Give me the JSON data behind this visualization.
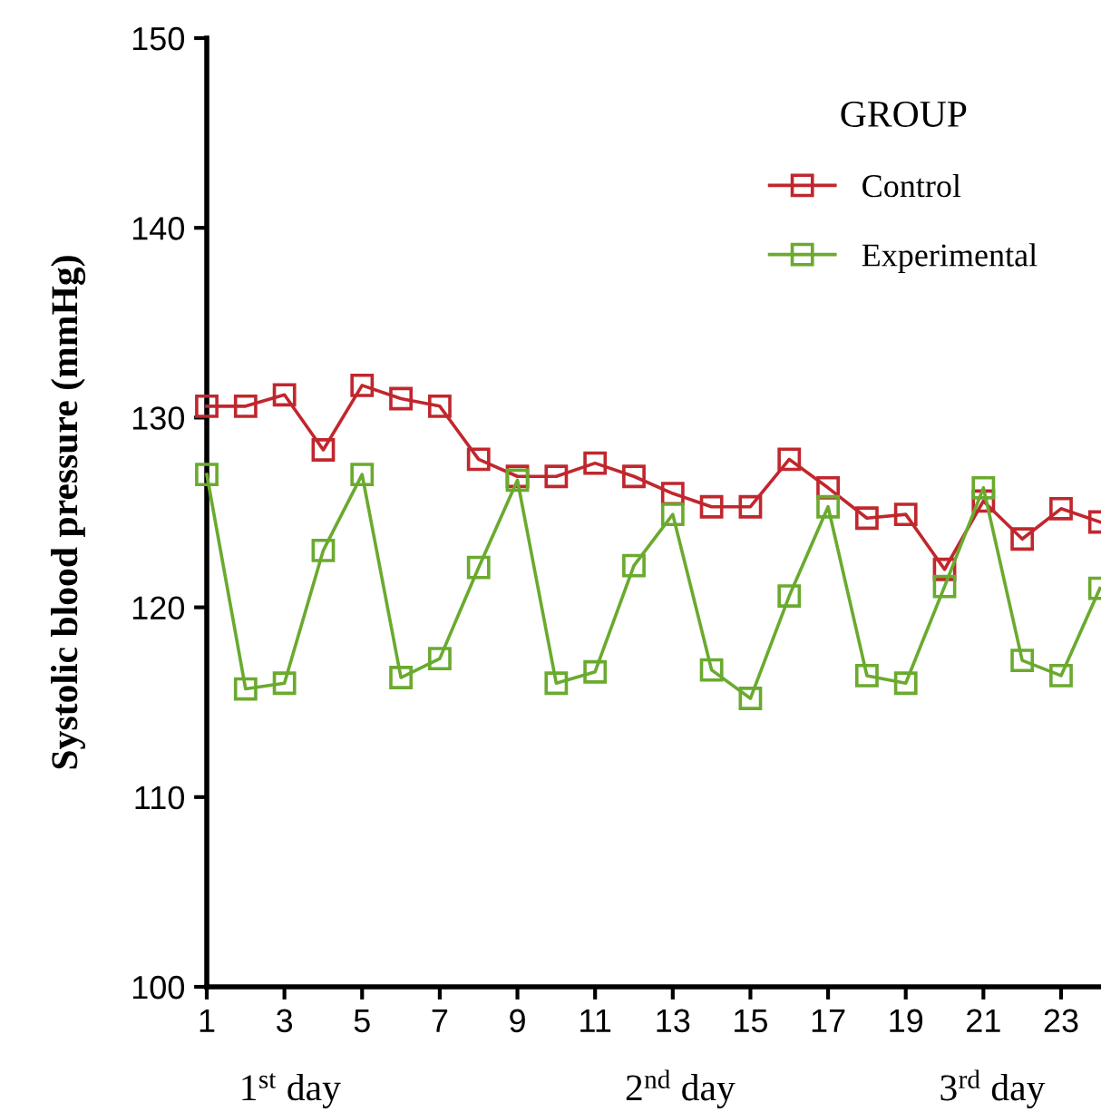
{
  "chart_data": {
    "type": "line",
    "ylabel": "Systolic blood pressure (mmHg)",
    "legend_title": "GROUP",
    "legend": "top right",
    "marker": "square",
    "line_style": "solid",
    "grid": false,
    "x": [
      1,
      2,
      3,
      4,
      5,
      6,
      7,
      8,
      9,
      10,
      11,
      12,
      13,
      14,
      15,
      16,
      17,
      18,
      19,
      20,
      21,
      22,
      23,
      24
    ],
    "xlim": [
      1,
      24
    ],
    "xticks": [
      1,
      3,
      5,
      7,
      9,
      11,
      13,
      15,
      17,
      19,
      21,
      23
    ],
    "ylim": [
      100,
      150
    ],
    "yticks": [
      100,
      110,
      120,
      130,
      140,
      150
    ],
    "series": [
      {
        "name": "Control",
        "color": "#c0272d",
        "values": [
          130.6,
          130.6,
          131.2,
          128.3,
          131.7,
          131.0,
          130.6,
          127.8,
          126.9,
          126.9,
          127.6,
          126.9,
          126.0,
          125.3,
          125.3,
          127.8,
          126.3,
          124.7,
          124.9,
          122.0,
          125.6,
          123.6,
          125.2,
          124.5
        ]
      },
      {
        "name": "Experimental",
        "color": "#6aaa2e",
        "values": [
          127.0,
          115.7,
          116.0,
          123.0,
          127.0,
          116.3,
          117.3,
          122.1,
          126.7,
          116.0,
          116.6,
          122.2,
          124.9,
          116.7,
          115.2,
          120.6,
          125.3,
          116.4,
          116.0,
          121.1,
          126.3,
          117.2,
          116.4,
          121.0
        ]
      }
    ],
    "annotations": [
      "1$^{st}$ day",
      "2$^{nd}$ day",
      "3$^{rd}$ day"
    ]
  }
}
